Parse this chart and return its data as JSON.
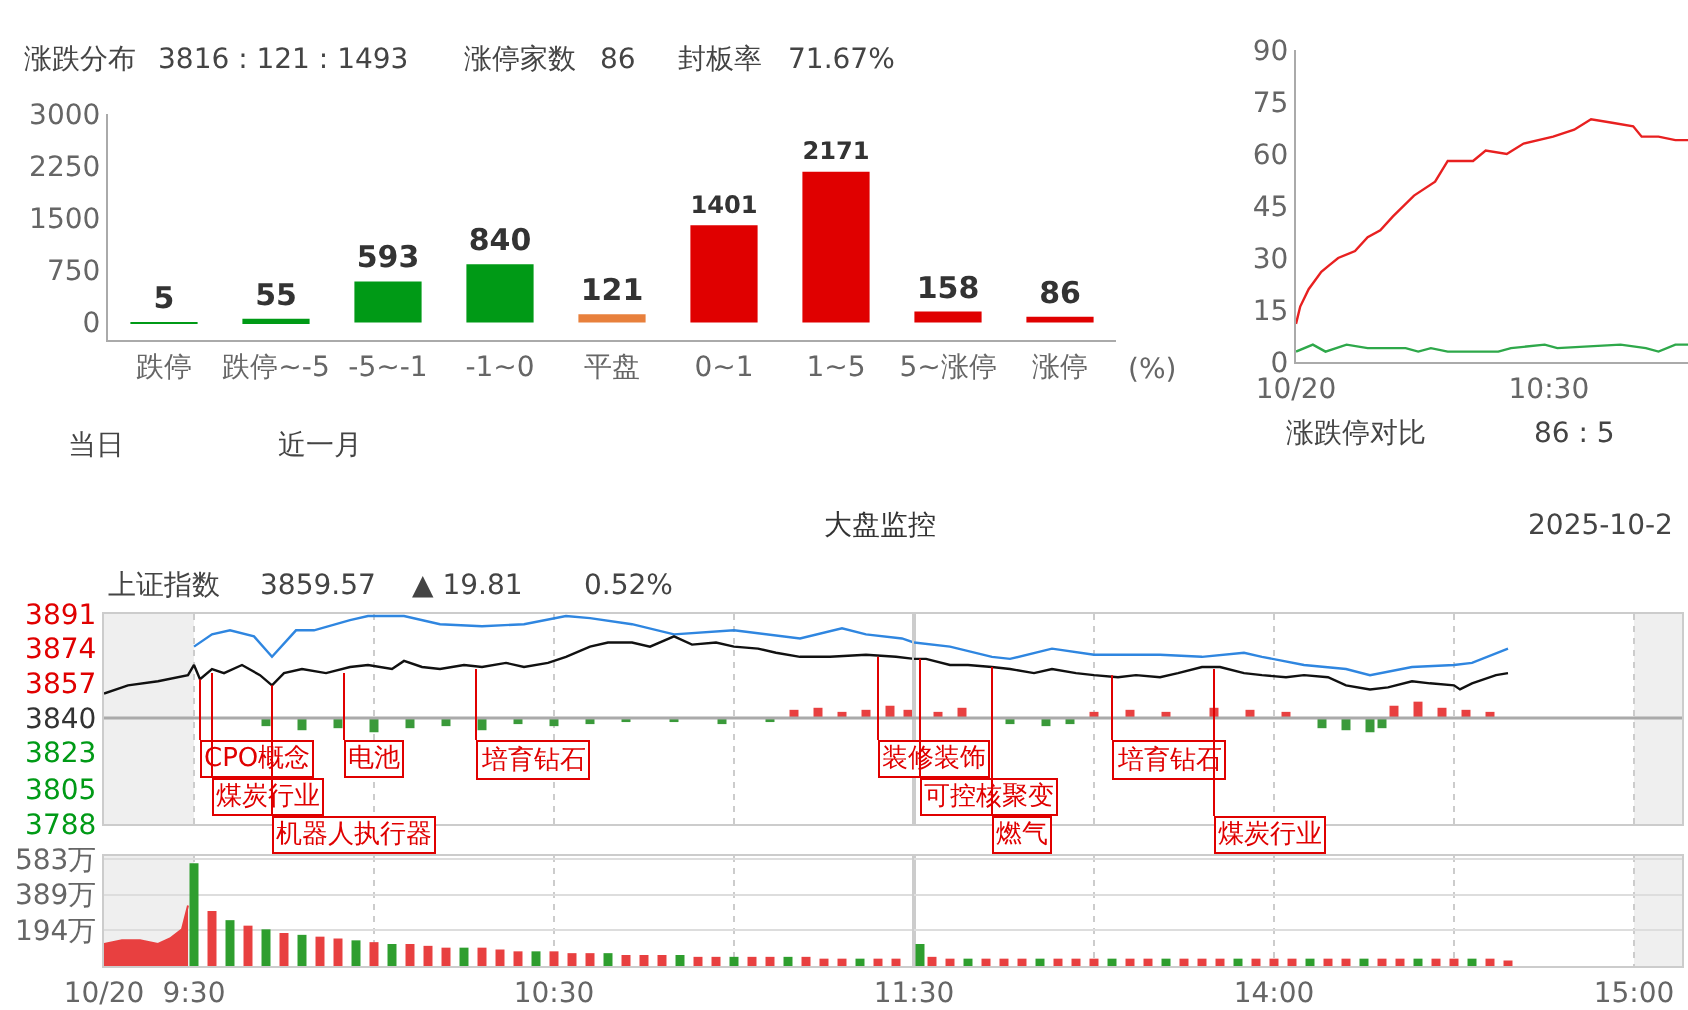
{
  "chart_data": [
    {
      "type": "bar",
      "categories": [
        "跌停",
        "跌停~-5",
        "-5~-1",
        "-1~0",
        "平盘",
        "0~1",
        "1~5",
        "5~涨停",
        "涨停"
      ],
      "values": [
        5,
        55,
        593,
        840,
        121,
        1401,
        2171,
        158,
        86
      ],
      "colors": [
        "#009a16",
        "#009a16",
        "#009a16",
        "#009a16",
        "#e8803c",
        "#e00000",
        "#e00000",
        "#e00000",
        "#e00000"
      ],
      "data_labels": true,
      "ylim": [
        -250,
        3000
      ],
      "yticks": [
        0,
        750,
        1500,
        2250,
        3000
      ],
      "xlabel": "(%)",
      "annotations": [
        "涨跌分布",
        "3816 : 121 : 1493",
        "涨停家数",
        "86",
        "封板率",
        "71.67%",
        "当日",
        "近一月"
      ]
    },
    {
      "type": "line",
      "xlim": [
        "2025-10-20T09:30",
        "2025-10-20T11:03"
      ],
      "xticks": [
        {
          "value": "2025-10-20T09:30",
          "label": "10/20"
        },
        {
          "value": "2025-10-20T10:30",
          "label": "10:30"
        }
      ],
      "ylim": [
        0,
        90
      ],
      "yticks": [
        0,
        15,
        30,
        45,
        60,
        75,
        90
      ],
      "series": [
        {
          "color": "#e82020",
          "x": [
            "2025-10-20T09:30",
            "2025-10-20T09:31",
            "2025-10-20T09:33",
            "2025-10-20T09:36",
            "2025-10-20T09:38",
            "2025-10-20T09:40",
            "2025-10-20T09:44",
            "2025-10-20T09:47",
            "2025-10-20T09:50",
            "2025-10-20T09:53",
            "2025-10-20T09:58",
            "2025-10-20T10:03",
            "2025-10-20T10:06",
            "2025-10-20T10:12",
            "2025-10-20T10:15",
            "2025-10-20T10:20",
            "2025-10-20T10:24",
            "2025-10-20T10:31",
            "2025-10-20T10:36",
            "2025-10-20T10:40",
            "2025-10-20T10:45",
            "2025-10-20T10:50",
            "2025-10-20T10:52",
            "2025-10-20T10:56",
            "2025-10-20T11:00",
            "2025-10-20T11:03"
          ],
          "values": [
            11,
            16,
            21,
            26,
            28,
            30,
            32,
            36,
            38,
            42,
            48,
            52,
            58,
            58,
            61,
            60,
            63,
            65,
            67,
            70,
            69,
            68,
            65,
            65,
            64,
            64
          ]
        },
        {
          "color": "#2ea84a",
          "x": [
            "2025-10-20T09:30",
            "2025-10-20T09:34",
            "2025-10-20T09:37",
            "2025-10-20T09:42",
            "2025-10-20T09:47",
            "2025-10-20T09:56",
            "2025-10-20T09:59",
            "2025-10-20T10:02",
            "2025-10-20T10:06",
            "2025-10-20T10:18",
            "2025-10-20T10:21",
            "2025-10-20T10:29",
            "2025-10-20T10:32",
            "2025-10-20T10:47",
            "2025-10-20T10:53",
            "2025-10-20T10:56",
            "2025-10-20T11:00",
            "2025-10-20T11:03"
          ],
          "values": [
            3,
            5,
            3,
            5,
            4,
            4,
            3,
            4,
            3,
            3,
            4,
            5,
            4,
            5,
            4,
            3,
            5,
            5
          ]
        }
      ],
      "annotations": [
        "涨跌停对比",
        "86 : 5"
      ]
    },
    {
      "type": "line",
      "title": "大盘监控",
      "xlim": [
        "2025-10-20T09:15",
        "2025-10-20T11:30"
      ],
      "xticks": [
        {
          "value": "2025-10-20T09:15",
          "label": null
        },
        {
          "value": "2025-10-20T09:30",
          "label": null
        },
        {
          "value": "2025-10-20T10:00",
          "label": null
        },
        {
          "value": "2025-10-20T10:30",
          "label": null
        },
        {
          "value": "2025-10-20T11:00",
          "label": null
        },
        {
          "value": "2025-10-20T11:30",
          "label": null
        }
      ],
      "ylim": [
        3788,
        3891
      ],
      "yticks": [
        3788,
        3805,
        3823,
        3840,
        3857,
        3874,
        3891
      ],
      "grid": "x",
      "tick_labels": "y",
      "ref_lines": [
        {
          "axis": "y",
          "value": 3840,
          "color": "#aaaaaa"
        }
      ],
      "bands": [
        {
          "axis": "x",
          "from": "2025-10-20T09:15",
          "to": "2025-10-20T09:30",
          "color": "#efefef"
        }
      ],
      "series": [
        {
          "type": "bar",
          "color": "#e84040",
          "x": [
            "2025-10-20T11:10",
            "2025-10-20T11:14",
            "2025-10-20T11:18",
            "2025-10-20T11:22",
            "2025-10-20T11:26",
            "2025-10-20T11:29"
          ],
          "values": [
            4,
            5,
            3,
            4,
            6,
            4
          ],
          "base": [
            3840,
            3840,
            3840,
            3840,
            3840,
            3840
          ]
        },
        {
          "type": "bar",
          "color": "#3a9a3a",
          "x": [
            "2025-10-20T09:42",
            "2025-10-20T09:48",
            "2025-10-20T09:54",
            "2025-10-20T10:00",
            "2025-10-20T10:06",
            "2025-10-20T10:12",
            "2025-10-20T10:18",
            "2025-10-20T10:24",
            "2025-10-20T10:30",
            "2025-10-20T10:36",
            "2025-10-20T10:42",
            "2025-10-20T10:50",
            "2025-10-20T10:58",
            "2025-10-20T11:06"
          ],
          "values": [
            -4,
            -6,
            -5,
            -7,
            -5,
            -4,
            -6,
            -3,
            -4,
            -3,
            -2,
            -2,
            -3,
            -2
          ],
          "base": [
            3840,
            3840,
            3840,
            3840,
            3840,
            3840,
            3840,
            3840,
            3840,
            3840,
            3840,
            3840,
            3840,
            3840
          ]
        },
        {
          "color": "#2f86e0",
          "x": [
            "2025-10-20T09:30",
            "2025-10-20T09:33",
            "2025-10-20T09:36",
            "2025-10-20T09:40",
            "2025-10-20T09:43",
            "2025-10-20T09:47",
            "2025-10-20T09:50",
            "2025-10-20T09:56",
            "2025-10-20T09:59",
            "2025-10-20T10:05",
            "2025-10-20T10:11",
            "2025-10-20T10:18",
            "2025-10-20T10:25",
            "2025-10-20T10:32",
            "2025-10-20T10:36",
            "2025-10-20T10:43",
            "2025-10-20T10:50",
            "2025-10-20T11:00",
            "2025-10-20T11:11",
            "2025-10-20T11:18",
            "2025-10-20T11:22",
            "2025-10-20T11:28",
            "2025-10-20T11:30"
          ],
          "values": [
            3875,
            3881,
            3883,
            3880,
            3870,
            3883,
            3883,
            3888,
            3890,
            3890,
            3886,
            3885,
            3886,
            3890,
            3889,
            3886,
            3881,
            3883,
            3879,
            3884,
            3881,
            3879,
            3877
          ]
        },
        {
          "color": "#111111",
          "x": [
            "2025-10-20T09:15",
            "2025-10-20T09:19",
            "2025-10-20T09:24",
            "2025-10-20T09:29",
            "2025-10-20T09:30",
            "2025-10-20T09:31",
            "2025-10-20T09:33",
            "2025-10-20T09:35",
            "2025-10-20T09:38",
            "2025-10-20T09:41",
            "2025-10-20T09:43",
            "2025-10-20T09:45",
            "2025-10-20T09:48",
            "2025-10-20T09:52",
            "2025-10-20T09:56",
            "2025-10-20T09:59",
            "2025-10-20T10:03",
            "2025-10-20T10:05",
            "2025-10-20T10:08",
            "2025-10-20T10:11",
            "2025-10-20T10:15",
            "2025-10-20T10:18",
            "2025-10-20T10:22",
            "2025-10-20T10:25",
            "2025-10-20T10:29",
            "2025-10-20T10:32",
            "2025-10-20T10:36",
            "2025-10-20T10:39",
            "2025-10-20T10:43",
            "2025-10-20T10:46",
            "2025-10-20T10:50",
            "2025-10-20T10:53",
            "2025-10-20T10:57",
            "2025-10-20T11:00",
            "2025-10-20T11:04",
            "2025-10-20T11:07",
            "2025-10-20T11:11",
            "2025-10-20T11:16",
            "2025-10-20T11:22",
            "2025-10-20T11:27",
            "2025-10-20T11:30"
          ],
          "values": [
            3852,
            3856,
            3858,
            3861,
            3866,
            3859,
            3864,
            3862,
            3866,
            3861,
            3856,
            3862,
            3864,
            3862,
            3865,
            3866,
            3864,
            3868,
            3865,
            3864,
            3866,
            3865,
            3867,
            3865,
            3867,
            3870,
            3875,
            3877,
            3877,
            3875,
            3880,
            3876,
            3877,
            3875,
            3874,
            3872,
            3870,
            3870,
            3871,
            3870,
            3869
          ]
        }
      ],
      "annotations": [
        "2025-10-2",
        "上证指数",
        "3859.57",
        "▲ 19.81",
        "0.52%",
        {
          "text": "CPO概念",
          "x": "2025-10-20T09:31",
          "y": 3859
        },
        {
          "text": "煤炭行业",
          "x": "2025-10-20T09:33",
          "y": 3862
        },
        {
          "text": "机器人执行器",
          "x": "2025-10-20T09:43",
          "y": 3856
        },
        {
          "text": "电池",
          "x": "2025-10-20T09:55",
          "y": 3862
        },
        {
          "text": "培育钻石",
          "x": "2025-10-20T10:17",
          "y": 3864
        },
        {
          "text": "装修装饰",
          "x": "2025-10-20T11:24",
          "y": 3870
        }
      ]
    },
    {
      "type": "line",
      "xlim": [
        "2025-10-20T13:00",
        "2025-10-20T15:08"
      ],
      "xticks": [
        {
          "value": "2025-10-20T13:30",
          "label": null
        },
        {
          "value": "2025-10-20T14:00",
          "label": null
        },
        {
          "value": "2025-10-20T14:30",
          "label": null
        },
        {
          "value": "2025-10-20T15:00",
          "label": null
        }
      ],
      "ylim": [
        3788,
        3891
      ],
      "yticks": [
        3788,
        3805,
        3823,
        3840,
        3857,
        3874,
        3891
      ],
      "grid": "x",
      "tick_labels": false,
      "ref_lines": [
        {
          "axis": "y",
          "value": 3840,
          "color": "#aaaaaa"
        }
      ],
      "bands": [
        {
          "axis": "x",
          "from": "2025-10-20T15:00",
          "to": "2025-10-20T15:08",
          "color": "#efefef"
        }
      ],
      "series": [
        {
          "type": "bar",
          "color": "#e84040",
          "x": [
            "2025-10-20T13:04",
            "2025-10-20T13:08",
            "2025-10-20T13:30",
            "2025-10-20T13:36",
            "2025-10-20T13:42",
            "2025-10-20T13:50",
            "2025-10-20T13:56",
            "2025-10-20T14:02",
            "2025-10-20T14:20",
            "2025-10-20T14:24",
            "2025-10-20T14:28",
            "2025-10-20T14:32",
            "2025-10-20T14:36"
          ],
          "values": [
            3,
            5,
            3,
            4,
            3,
            5,
            4,
            3,
            6,
            8,
            5,
            4,
            3
          ],
          "base": [
            3840,
            3840,
            3840,
            3840,
            3840,
            3840,
            3840,
            3840,
            3840,
            3840,
            3840,
            3840,
            3840
          ]
        },
        {
          "type": "bar",
          "color": "#3a9a3a",
          "x": [
            "2025-10-20T13:16",
            "2025-10-20T13:22",
            "2025-10-20T13:26",
            "2025-10-20T14:08",
            "2025-10-20T14:12",
            "2025-10-20T14:16",
            "2025-10-20T14:18"
          ],
          "values": [
            -3,
            -4,
            -3,
            -5,
            -6,
            -7,
            -5
          ],
          "base": [
            3840,
            3840,
            3840,
            3840,
            3840,
            3840,
            3840
          ]
        },
        {
          "color": "#2f86e0",
          "x": [
            "2025-10-20T13:00",
            "2025-10-20T13:06",
            "2025-10-20T13:13",
            "2025-10-20T13:16",
            "2025-10-20T13:23",
            "2025-10-20T13:30",
            "2025-10-20T13:41",
            "2025-10-20T13:48",
            "2025-10-20T13:55",
            "2025-10-20T13:58",
            "2025-10-20T14:05",
            "2025-10-20T14:12",
            "2025-10-20T14:16",
            "2025-10-20T14:23",
            "2025-10-20T14:30",
            "2025-10-20T14:33",
            "2025-10-20T14:39"
          ],
          "values": [
            3877,
            3875,
            3870,
            3869,
            3874,
            3871,
            3871,
            3870,
            3872,
            3870,
            3866,
            3864,
            3861,
            3865,
            3866,
            3867,
            3874
          ]
        },
        {
          "color": "#111111",
          "x": [
            "2025-10-20T13:00",
            "2025-10-20T13:02",
            "2025-10-20T13:06",
            "2025-10-20T13:09",
            "2025-10-20T13:13",
            "2025-10-20T13:16",
            "2025-10-20T13:20",
            "2025-10-20T13:23",
            "2025-10-20T13:27",
            "2025-10-20T13:30",
            "2025-10-20T13:34",
            "2025-10-20T13:37",
            "2025-10-20T13:41",
            "2025-10-20T13:44",
            "2025-10-20T13:48",
            "2025-10-20T13:51",
            "2025-10-20T13:55",
            "2025-10-20T13:58",
            "2025-10-20T14:02",
            "2025-10-20T14:05",
            "2025-10-20T14:09",
            "2025-10-20T14:12",
            "2025-10-20T14:16",
            "2025-10-20T14:19",
            "2025-10-20T14:23",
            "2025-10-20T14:26",
            "2025-10-20T14:30",
            "2025-10-20T14:31",
            "2025-10-20T14:33",
            "2025-10-20T14:37",
            "2025-10-20T14:39"
          ],
          "values": [
            3869,
            3869,
            3866,
            3866,
            3865,
            3864,
            3862,
            3864,
            3862,
            3861,
            3860,
            3861,
            3860,
            3862,
            3865,
            3865,
            3862,
            3861,
            3860,
            3861,
            3860,
            3856,
            3854,
            3855,
            3858,
            3857,
            3856,
            3854,
            3857,
            3861,
            3862
          ]
        }
      ],
      "annotations": [
        {
          "text": "可控核聚变",
          "x": "2025-10-20T13:01",
          "y": 3869
        },
        {
          "text": "燃气",
          "x": "2025-10-20T13:13",
          "y": 3865
        },
        {
          "text": "培育钻石",
          "x": "2025-10-20T13:33",
          "y": 3861
        },
        {
          "text": "煤炭行业",
          "x": "2025-10-20T13:50",
          "y": 3864
        }
      ]
    },
    {
      "type": "bar",
      "xlim": [
        "2025-10-20T09:15",
        "2025-10-20T11:30"
      ],
      "xticks": [
        {
          "value": "2025-10-20T09:15",
          "label": "10/20"
        },
        {
          "value": "2025-10-20T09:30",
          "label": "9:30"
        },
        {
          "value": "2025-10-20T10:00",
          "label": null
        },
        {
          "value": "2025-10-20T10:30",
          "label": "10:30"
        },
        {
          "value": "2025-10-20T11:00",
          "label": null
        },
        {
          "value": "2025-10-20T11:30",
          "label": "11:30"
        }
      ],
      "ylim": [
        0,
        600
      ],
      "yticks": [
        {
          "value": 194,
          "label": "194万"
        },
        {
          "value": 389,
          "label": "389万"
        },
        {
          "value": 583,
          "label": "583万"
        }
      ],
      "grid": true,
      "bands": [
        {
          "axis": "x",
          "from": "2025-10-20T09:15",
          "to": "2025-10-20T09:30",
          "color": "#efefef"
        }
      ],
      "series": [
        {
          "type": "area",
          "color": "#e84040",
          "x": [
            "2025-10-20T09:15",
            "2025-10-20T09:18",
            "2025-10-20T09:21",
            "2025-10-20T09:24",
            "2025-10-20T09:26",
            "2025-10-20T09:28",
            "2025-10-20T09:29"
          ],
          "values": [
            120,
            140,
            140,
            120,
            150,
            200,
            330
          ]
        },
        {
          "color": "#e84040",
          "x": [
            "2025-10-20T09:33",
            "2025-10-20T09:39",
            "2025-10-20T09:45",
            "2025-10-20T09:51",
            "2025-10-20T09:54",
            "2025-10-20T10:00",
            "2025-10-20T10:06",
            "2025-10-20T10:09",
            "2025-10-20T10:12",
            "2025-10-20T10:18",
            "2025-10-20T10:21",
            "2025-10-20T10:24",
            "2025-10-20T10:30",
            "2025-10-20T10:33",
            "2025-10-20T10:36",
            "2025-10-20T10:42",
            "2025-10-20T10:45",
            "2025-10-20T10:48",
            "2025-10-20T10:54",
            "2025-10-20T10:57",
            "2025-10-20T11:03",
            "2025-10-20T11:06",
            "2025-10-20T11:12",
            "2025-10-20T11:15",
            "2025-10-20T11:18",
            "2025-10-20T11:24",
            "2025-10-20T11:27"
          ],
          "values": [
            300,
            220,
            180,
            160,
            150,
            130,
            120,
            110,
            100,
            100,
            90,
            80,
            80,
            70,
            70,
            60,
            60,
            60,
            50,
            50,
            50,
            50,
            50,
            40,
            40,
            40,
            40
          ]
        },
        {
          "color": "#2e9e2e",
          "x": [
            "2025-10-20T09:30",
            "2025-10-20T09:36",
            "2025-10-20T09:42",
            "2025-10-20T09:48",
            "2025-10-20T09:57",
            "2025-10-20T10:03",
            "2025-10-20T10:15",
            "2025-10-20T10:27",
            "2025-10-20T10:39",
            "2025-10-20T10:51",
            "2025-10-20T11:00",
            "2025-10-20T11:09",
            "2025-10-20T11:21"
          ],
          "values": [
            560,
            250,
            200,
            170,
            140,
            120,
            100,
            80,
            70,
            60,
            50,
            50,
            40
          ]
        }
      ]
    },
    {
      "type": "bar",
      "xlim": [
        "2025-10-20T13:00",
        "2025-10-20T15:08"
      ],
      "xticks": [
        {
          "value": "2025-10-20T13:30",
          "label": null
        },
        {
          "value": "2025-10-20T14:00",
          "label": "14:00"
        },
        {
          "value": "2025-10-20T14:30",
          "label": null
        },
        {
          "value": "2025-10-20T15:00",
          "label": "15:00"
        }
      ],
      "ylim": [
        0,
        600
      ],
      "yticks": [
        {
          "value": 194,
          "label": null
        },
        {
          "value": 389,
          "label": null
        },
        {
          "value": 583,
          "label": null
        }
      ],
      "grid": true,
      "tick_labels": "x",
      "bands": [
        {
          "axis": "x",
          "from": "2025-10-20T15:00",
          "to": "2025-10-20T15:08",
          "color": "#efefef"
        }
      ],
      "series": [
        {
          "color": "#e84040",
          "x": [
            "2025-10-20T13:03",
            "2025-10-20T13:06",
            "2025-10-20T13:12",
            "2025-10-20T13:15",
            "2025-10-20T13:18",
            "2025-10-20T13:24",
            "2025-10-20T13:27",
            "2025-10-20T13:30",
            "2025-10-20T13:36",
            "2025-10-20T13:39",
            "2025-10-20T13:45",
            "2025-10-20T13:48",
            "2025-10-20T13:51",
            "2025-10-20T13:57",
            "2025-10-20T14:00",
            "2025-10-20T14:03",
            "2025-10-20T14:09",
            "2025-10-20T14:12",
            "2025-10-20T14:18",
            "2025-10-20T14:21",
            "2025-10-20T14:27",
            "2025-10-20T14:30",
            "2025-10-20T14:36",
            "2025-10-20T14:39"
          ],
          "values": [
            50,
            40,
            40,
            40,
            40,
            40,
            40,
            40,
            40,
            40,
            40,
            40,
            40,
            40,
            40,
            40,
            40,
            40,
            40,
            40,
            40,
            40,
            40,
            30
          ]
        },
        {
          "color": "#2e9e2e",
          "x": [
            "2025-10-20T13:01",
            "2025-10-20T13:09",
            "2025-10-20T13:21",
            "2025-10-20T13:33",
            "2025-10-20T13:42",
            "2025-10-20T13:54",
            "2025-10-20T14:06",
            "2025-10-20T14:15",
            "2025-10-20T14:24",
            "2025-10-20T14:33"
          ],
          "values": [
            120,
            40,
            40,
            40,
            40,
            40,
            40,
            40,
            40,
            40
          ]
        }
      ]
    }
  ]
}
